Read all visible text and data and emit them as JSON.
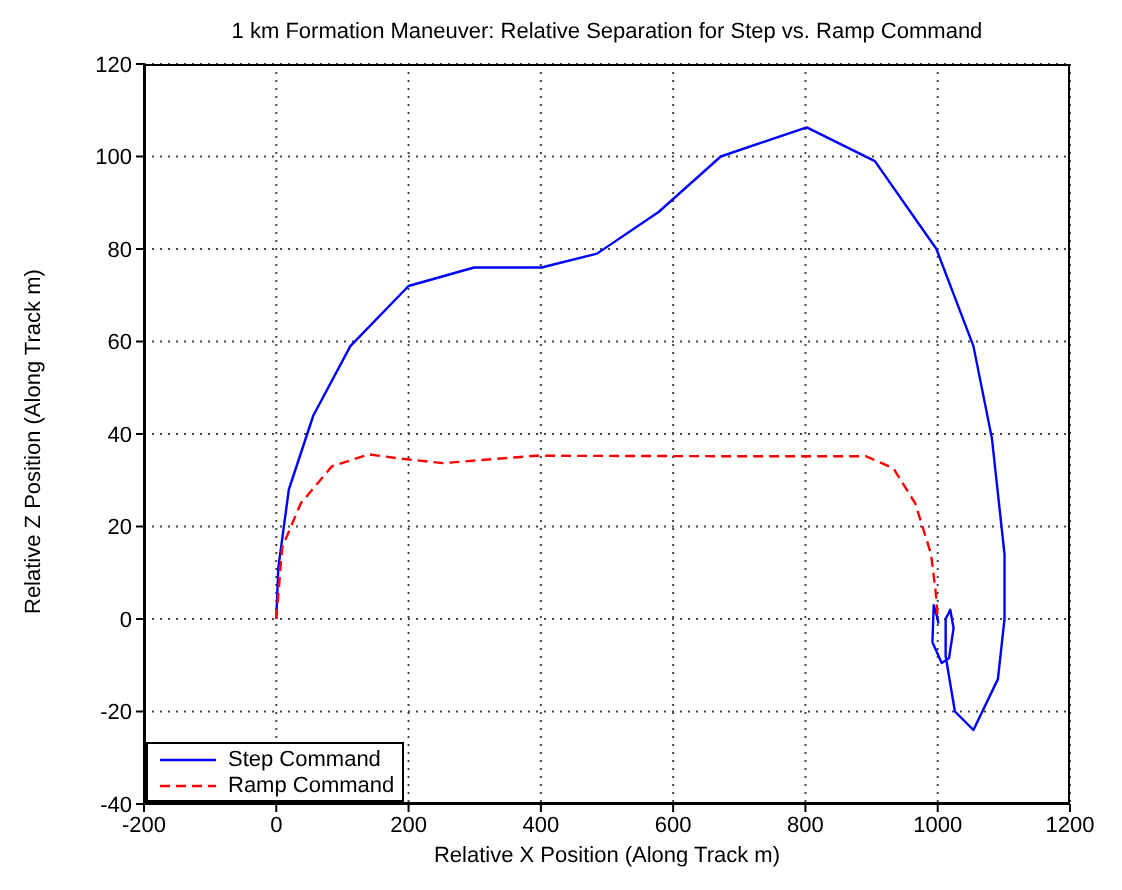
{
  "chart_data": {
    "type": "line",
    "title": "1 km Formation Maneuver: Relative Separation for Step vs. Ramp Command",
    "xlabel": "Relative X Position (Along Track m)",
    "ylabel": "Relative Z Position (Along Track m)",
    "xlim": [
      -200,
      1200
    ],
    "xticks": [
      -200,
      0,
      200,
      400,
      600,
      800,
      1000,
      1200
    ],
    "ylim": [
      -40,
      120
    ],
    "yticks": [
      -40,
      -20,
      0,
      20,
      40,
      60,
      80,
      100,
      120
    ],
    "grid": true,
    "legend": "bottom left",
    "series": [
      {
        "name": "Step Command",
        "color": "#0000ff",
        "line_style": "solid",
        "x": [
          0,
          3,
          19,
          56,
          112,
          200,
          299,
          401,
          485,
          578,
          672,
          802,
          905,
          998,
          1054,
          1082,
          1101,
          1101,
          1091,
          1054,
          1026,
          1012,
          1012,
          1019,
          1024,
          1017,
          1006,
          992,
          994,
          1000,
          1001
        ],
        "values": [
          0,
          11,
          28,
          44,
          59,
          72,
          76,
          76,
          79,
          88,
          100,
          106.3,
          99,
          80,
          59,
          39,
          14,
          0,
          -13,
          -24,
          -20,
          -8,
          0,
          2,
          -2,
          -8.5,
          -9.5,
          -5,
          3,
          0,
          -1
        ]
      },
      {
        "name": "Ramp Command",
        "color": "#ff0000",
        "line_style": "dashed",
        "x": [
          0,
          9,
          37,
          84,
          140,
          187,
          252,
          392,
          672,
          891,
          933,
          966,
          990,
          998,
          1000
        ],
        "values": [
          0,
          15.5,
          25,
          33,
          35.6,
          34.7,
          33.7,
          35.3,
          35.2,
          35.2,
          32.6,
          25,
          14,
          4.5,
          0
        ]
      }
    ]
  }
}
